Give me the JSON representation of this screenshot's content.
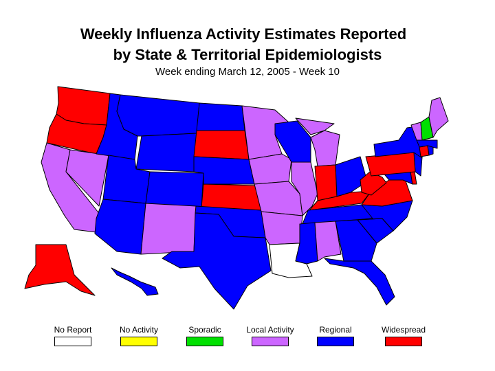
{
  "title_line1": "Weekly Influenza Activity Estimates Reported",
  "title_line2": "by State & Territorial Epidemiologists",
  "subtitle": "Week ending March 12, 2005 - Week 10",
  "colors": {
    "no_report": "#ffffff",
    "no_activity": "#ffff00",
    "sporadic": "#00e000",
    "local": "#cc66ff",
    "regional": "#0000ff",
    "widespread": "#ff0000",
    "outline": "#000000"
  },
  "legend": [
    {
      "label": "No Report",
      "level": "no_report"
    },
    {
      "label": "No Activity",
      "level": "no_activity"
    },
    {
      "label": "Sporadic",
      "level": "sporadic"
    },
    {
      "label": "Local Activity",
      "level": "local"
    },
    {
      "label": "Regional",
      "level": "regional"
    },
    {
      "label": "Widespread",
      "level": "widespread"
    }
  ],
  "states": [
    {
      "id": "WA",
      "level": "widespread"
    },
    {
      "id": "OR",
      "level": "widespread"
    },
    {
      "id": "CA",
      "level": "local"
    },
    {
      "id": "NV",
      "level": "local"
    },
    {
      "id": "ID",
      "level": "regional"
    },
    {
      "id": "MT",
      "level": "regional"
    },
    {
      "id": "WY",
      "level": "regional"
    },
    {
      "id": "UT",
      "level": "regional"
    },
    {
      "id": "AZ",
      "level": "regional"
    },
    {
      "id": "CO",
      "level": "regional"
    },
    {
      "id": "NM",
      "level": "local"
    },
    {
      "id": "ND",
      "level": "regional"
    },
    {
      "id": "SD",
      "level": "widespread"
    },
    {
      "id": "NE",
      "level": "regional"
    },
    {
      "id": "KS",
      "level": "widespread"
    },
    {
      "id": "OK",
      "level": "regional"
    },
    {
      "id": "TX",
      "level": "regional"
    },
    {
      "id": "MN",
      "level": "local"
    },
    {
      "id": "IA",
      "level": "local"
    },
    {
      "id": "MO",
      "level": "local"
    },
    {
      "id": "AR",
      "level": "local"
    },
    {
      "id": "LA",
      "level": "no_report"
    },
    {
      "id": "WI",
      "level": "regional"
    },
    {
      "id": "IL",
      "level": "local"
    },
    {
      "id": "MI",
      "level": "local"
    },
    {
      "id": "IN",
      "level": "widespread"
    },
    {
      "id": "OH",
      "level": "regional"
    },
    {
      "id": "KY",
      "level": "widespread"
    },
    {
      "id": "TN",
      "level": "regional"
    },
    {
      "id": "MS",
      "level": "regional"
    },
    {
      "id": "AL",
      "level": "local"
    },
    {
      "id": "GA",
      "level": "regional"
    },
    {
      "id": "FL",
      "level": "regional"
    },
    {
      "id": "SC",
      "level": "regional"
    },
    {
      "id": "NC",
      "level": "regional"
    },
    {
      "id": "VA",
      "level": "widespread"
    },
    {
      "id": "WV",
      "level": "widespread"
    },
    {
      "id": "MD",
      "level": "regional"
    },
    {
      "id": "DE",
      "level": "widespread"
    },
    {
      "id": "NJ",
      "level": "regional"
    },
    {
      "id": "PA",
      "level": "widespread"
    },
    {
      "id": "NY",
      "level": "regional"
    },
    {
      "id": "CT",
      "level": "widespread"
    },
    {
      "id": "RI",
      "level": "regional"
    },
    {
      "id": "MA",
      "level": "regional"
    },
    {
      "id": "VT",
      "level": "local"
    },
    {
      "id": "NH",
      "level": "sporadic"
    },
    {
      "id": "ME",
      "level": "local"
    },
    {
      "id": "AK",
      "level": "widespread"
    },
    {
      "id": "HI",
      "level": "regional"
    }
  ]
}
